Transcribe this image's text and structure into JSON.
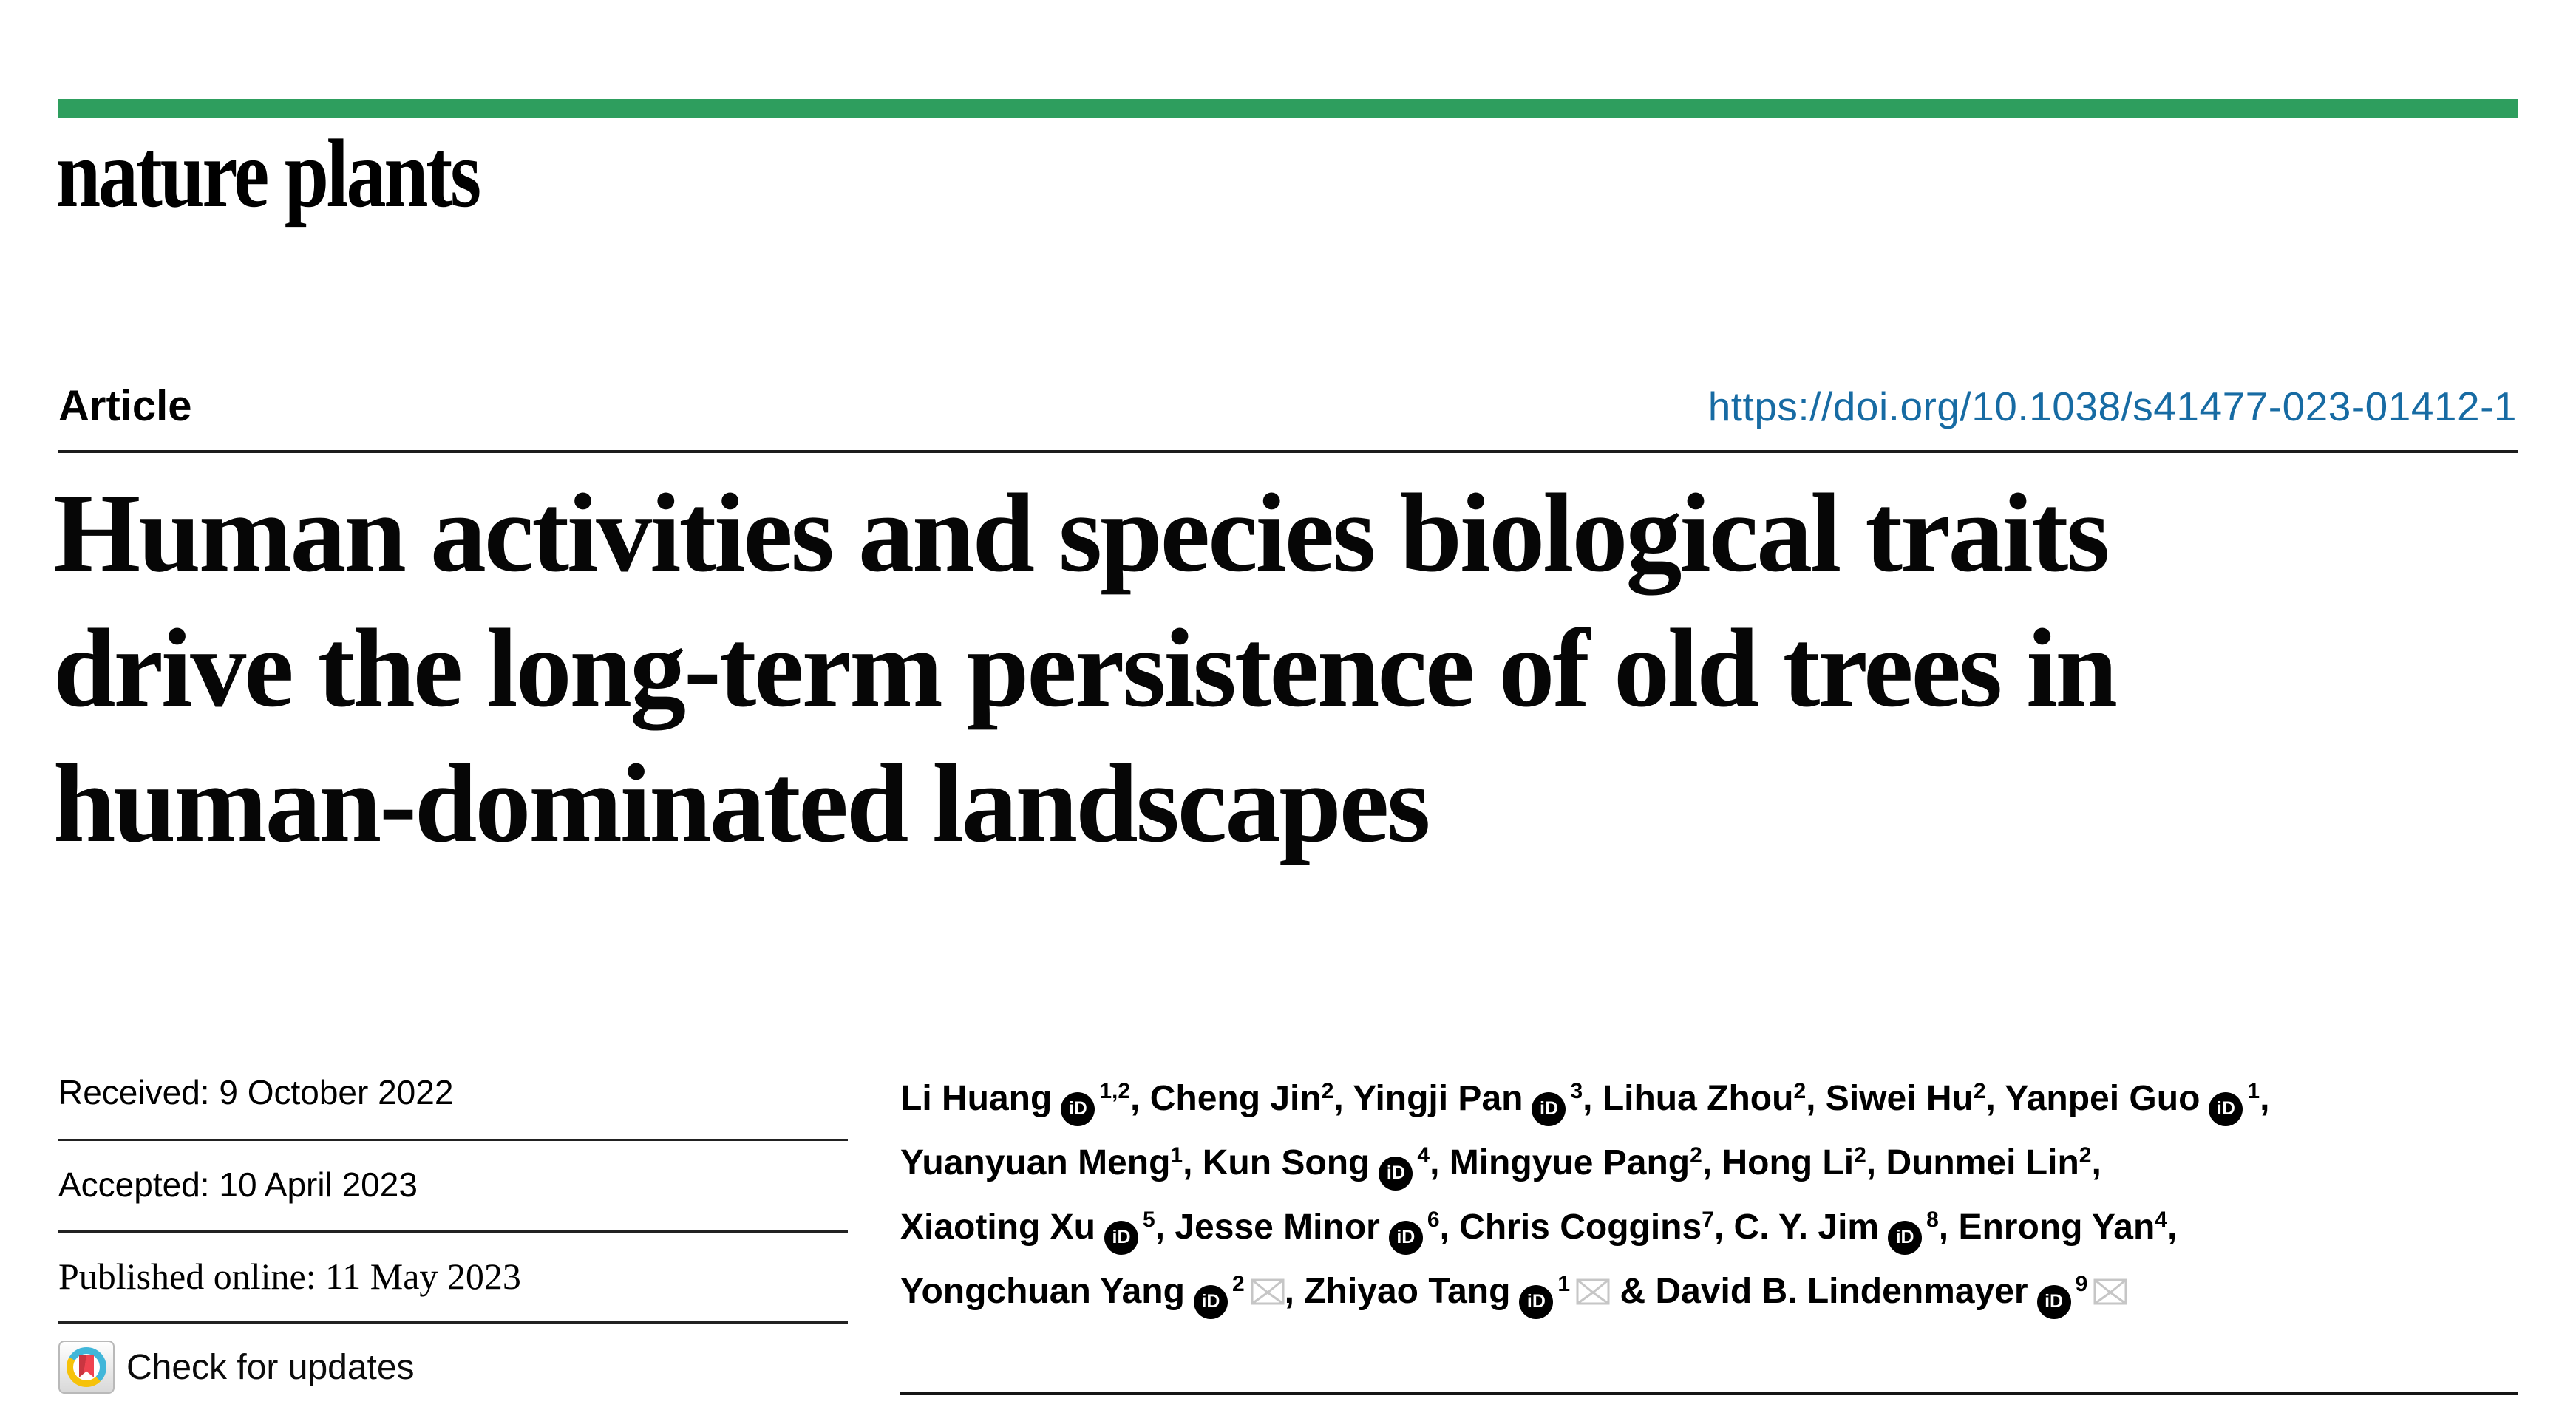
{
  "colors": {
    "accent_green": "#2e9e5e",
    "doi_blue": "#176ba3",
    "crossmark_cyan": "#41b6d9",
    "crossmark_yellow": "#f6c20a",
    "crossmark_red": "#ef4350"
  },
  "journal": {
    "name": "nature plants"
  },
  "article": {
    "label": "Article",
    "doi": "https://doi.org/10.1038/s41477-023-01412-1",
    "title_lines": [
      "Human activities and species biological traits",
      "drive the long-term persistence of old trees in",
      "human-dominated landscapes"
    ]
  },
  "dates": [
    {
      "text": "Received: 9 October 2022"
    },
    {
      "text": "Accepted: 10 April 2023"
    },
    {
      "text": "Published online: 11 May 2023"
    }
  ],
  "crossmark": {
    "label": "Check for updates"
  },
  "icons": {
    "orcid_label": "iD"
  },
  "authors": {
    "lines": [
      [
        {
          "t": "Li Huang"
        },
        {
          "icon": "orcid"
        },
        {
          "sup": "1,2"
        },
        {
          "t": ", Cheng Jin"
        },
        {
          "sup": "2"
        },
        {
          "t": ", Yingji Pan"
        },
        {
          "icon": "orcid"
        },
        {
          "sup": "3"
        },
        {
          "t": ", Lihua Zhou"
        },
        {
          "sup": "2"
        },
        {
          "t": ", Siwei Hu"
        },
        {
          "sup": "2"
        },
        {
          "t": ", Yanpei Guo"
        },
        {
          "icon": "orcid"
        },
        {
          "sup": "1"
        },
        {
          "t": ","
        }
      ],
      [
        {
          "t": "Yuanyuan Meng"
        },
        {
          "sup": "1"
        },
        {
          "t": ", Kun Song"
        },
        {
          "icon": "orcid"
        },
        {
          "sup": "4"
        },
        {
          "t": ", Mingyue Pang"
        },
        {
          "sup": "2"
        },
        {
          "t": ", Hong Li"
        },
        {
          "sup": "2"
        },
        {
          "t": ", Dunmei Lin"
        },
        {
          "sup": "2"
        },
        {
          "t": ","
        }
      ],
      [
        {
          "t": "Xiaoting Xu"
        },
        {
          "icon": "orcid"
        },
        {
          "sup": "5"
        },
        {
          "t": ", Jesse Minor"
        },
        {
          "icon": "orcid"
        },
        {
          "sup": "6"
        },
        {
          "t": ", Chris Coggins"
        },
        {
          "sup": "7"
        },
        {
          "t": ", C. Y. Jim"
        },
        {
          "icon": "orcid"
        },
        {
          "sup": "8"
        },
        {
          "t": ", Enrong Yan"
        },
        {
          "sup": "4"
        },
        {
          "t": ","
        }
      ],
      [
        {
          "t": "Yongchuan Yang"
        },
        {
          "icon": "orcid"
        },
        {
          "sup": "2"
        },
        {
          "icon": "envelope"
        },
        {
          "t": ", Zhiyao Tang"
        },
        {
          "icon": "orcid"
        },
        {
          "sup": "1"
        },
        {
          "icon": "envelope"
        },
        {
          "t": " & David B. Lindenmayer"
        },
        {
          "icon": "orcid"
        },
        {
          "sup": "9"
        },
        {
          "icon": "envelope"
        }
      ]
    ]
  }
}
